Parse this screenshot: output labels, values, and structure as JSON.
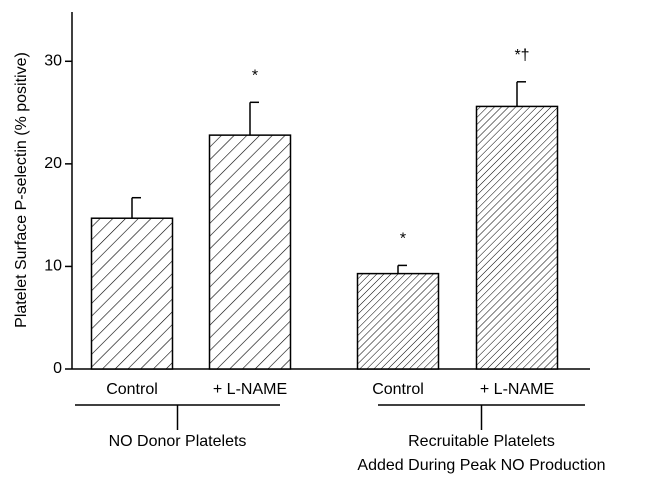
{
  "chart_data": {
    "type": "bar",
    "ylabel": "Platelet Surface P-selectin (% positive)",
    "categories": [
      "Control",
      "+ L-NAME",
      "Control",
      "+ L-NAME"
    ],
    "series": [
      {
        "color": "#000000",
        "values": [
          14.7,
          22.8,
          9.3,
          25.6
        ],
        "errors": [
          2.0,
          3.2,
          0.8,
          2.4
        ]
      }
    ],
    "annotations": [
      null,
      "*",
      "*",
      "*†"
    ],
    "groups": [
      {
        "labels": [
          "NO Donor Platelets"
        ]
      },
      {
        "labels": [
          "Recruitable Platelets",
          "Added During Peak NO Production"
        ]
      }
    ],
    "ylim": [
      0,
      35
    ],
    "yticks": [
      0,
      10,
      20,
      30
    ],
    "grid": false
  }
}
